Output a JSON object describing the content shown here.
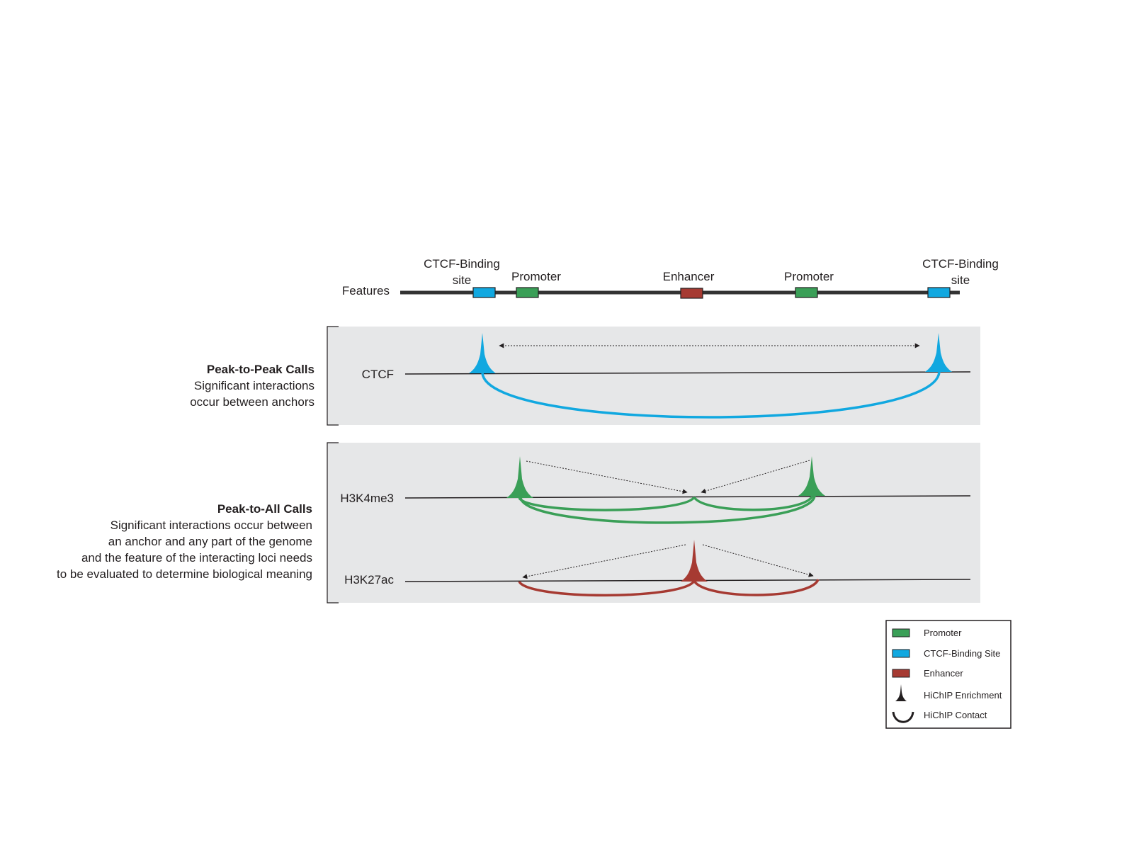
{
  "features": {
    "row_label": "Features",
    "items": [
      {
        "type": "ctcf",
        "line1": "CTCF-Binding",
        "line2": "site"
      },
      {
        "type": "promoter",
        "line1": "Promoter"
      },
      {
        "type": "enhancer",
        "line1": "Enhancer"
      },
      {
        "type": "promoter",
        "line1": "Promoter"
      },
      {
        "type": "ctcf",
        "line1": "CTCF-Binding",
        "line2": "site"
      }
    ]
  },
  "peak_to_peak": {
    "title": "Peak-to-Peak Calls",
    "desc": [
      "Significant interactions",
      "occur between anchors"
    ],
    "track_label": "CTCF"
  },
  "peak_to_all": {
    "title": "Peak-to-All Calls",
    "desc": [
      "Significant interactions occur between",
      "an anchor and  any part of the genome",
      "and the feature of the interacting loci needs",
      "to be evaluated to determine biological meaning"
    ],
    "track1_label": "H3K4me3",
    "track2_label": "H3K27ac"
  },
  "legend": {
    "promoter": "Promoter",
    "ctcf": "CTCF-Binding Site",
    "enhancer": "Enhancer",
    "enrichment": "HiChIP Enrichment",
    "contact": "HiChIP Contact"
  },
  "colors": {
    "ctcf": "#11a8e0",
    "promoter": "#3a9f57",
    "enhancer": "#a63a32",
    "line": "#231f20",
    "panel": "#e6e7e8"
  }
}
